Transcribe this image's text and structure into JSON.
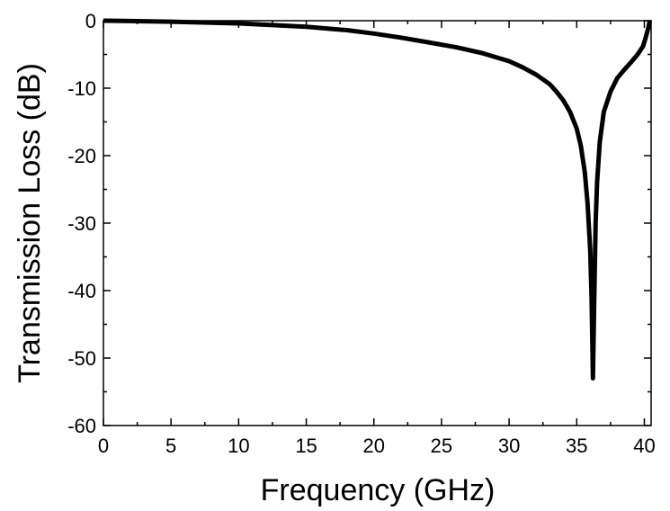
{
  "chart_data": {
    "type": "line",
    "title": "",
    "xlabel": "Frequency (GHz)",
    "ylabel": "Transmission Loss (dB)",
    "xlim": [
      0,
      40.5
    ],
    "ylim": [
      -60,
      0
    ],
    "xticks": [
      0,
      5,
      10,
      15,
      20,
      25,
      30,
      35,
      40
    ],
    "yticks": [
      0,
      -10,
      -20,
      -30,
      -40,
      -50,
      -60
    ],
    "xtick_labels": [
      "0",
      "5",
      "10",
      "15",
      "20",
      "25",
      "30",
      "35",
      "40"
    ],
    "ytick_labels": [
      "0",
      "-10",
      "-20",
      "-30",
      "-40",
      "-50",
      "-60"
    ],
    "grid": false,
    "legend": "none",
    "line_color": "#000000",
    "series": [
      {
        "x": [
          0,
          2,
          5,
          8,
          10,
          12,
          15,
          18,
          20,
          22,
          24,
          26,
          28,
          30,
          31,
          32,
          33,
          33.5,
          34,
          34.5,
          35,
          35.3,
          35.6,
          35.8,
          36.0,
          36.1,
          36.2,
          36.3,
          36.4,
          36.5,
          36.7,
          37.0,
          37.5,
          38.0,
          38.5,
          39.0,
          39.5,
          39.9,
          40.1,
          40.3,
          40.4
        ],
        "y": [
          0,
          -0.05,
          -0.15,
          -0.3,
          -0.4,
          -0.6,
          -0.9,
          -1.4,
          -1.9,
          -2.5,
          -3.2,
          -3.9,
          -4.8,
          -6.0,
          -6.9,
          -8.0,
          -9.4,
          -10.5,
          -11.8,
          -13.5,
          -16.0,
          -18.5,
          -22.5,
          -27.0,
          -34.0,
          -41.0,
          -53.0,
          -41.0,
          -30.0,
          -24.0,
          -18.0,
          -13.5,
          -10.5,
          -8.5,
          -7.3,
          -6.2,
          -5.0,
          -3.8,
          -2.5,
          -1.0,
          0
        ]
      }
    ]
  }
}
